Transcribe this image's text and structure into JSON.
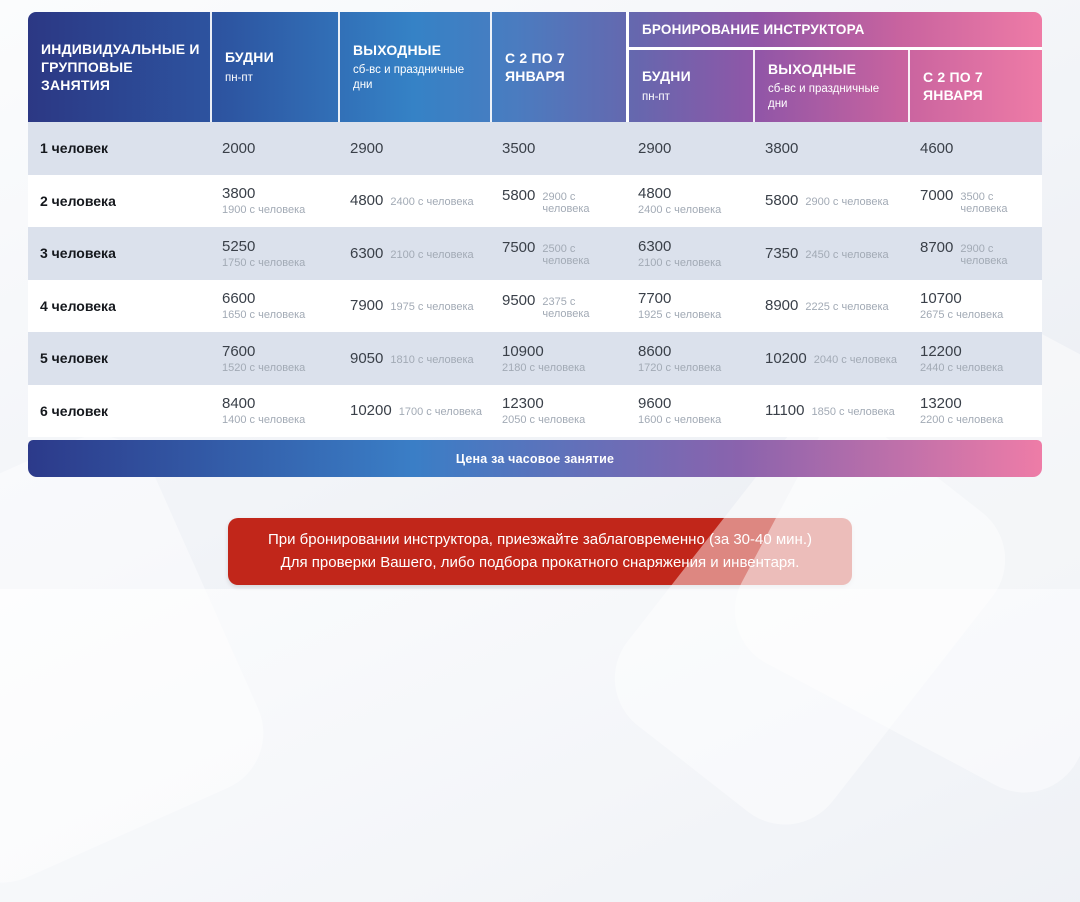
{
  "table": {
    "corner_title": "ИНДИВИДУАЛЬНЫЕ И ГРУППОВЫЕ ЗАНЯТИЯ",
    "booking_header": "БРОНИРОВАНИЕ ИНСТРУКТОРА",
    "columns": [
      {
        "title": "БУДНИ",
        "subtitle": "пн-пт"
      },
      {
        "title": "ВЫХОДНЫЕ",
        "subtitle": "сб-вс и праздничные дни"
      },
      {
        "title": "С 2 ПО 7 ЯНВАРЯ",
        "subtitle": ""
      },
      {
        "title": "БУДНИ",
        "subtitle": "пн-пт"
      },
      {
        "title": "ВЫХОДНЫЕ",
        "subtitle": "сб-вс и праздничные дни"
      },
      {
        "title": "С 2 ПО 7 ЯНВАРЯ",
        "subtitle": ""
      }
    ],
    "rows": [
      {
        "label": "1 человек",
        "cells": [
          {
            "main": "2000"
          },
          {
            "main": "2900"
          },
          {
            "main": "3500"
          },
          {
            "main": "2900"
          },
          {
            "main": "3800"
          },
          {
            "main": "4600"
          }
        ]
      },
      {
        "label": "2 человека",
        "cells": [
          {
            "main": "3800",
            "sub": "1900 с человека",
            "layout": "stacked"
          },
          {
            "main": "4800",
            "sub": "2400 с человека",
            "layout": "inline"
          },
          {
            "main": "5800",
            "sub": "2900 с человека",
            "layout": "inline"
          },
          {
            "main": "4800",
            "sub": "2400 с человека",
            "layout": "stacked"
          },
          {
            "main": "5800",
            "sub": "2900 с человека",
            "layout": "inline"
          },
          {
            "main": "7000",
            "sub": "3500 с человека",
            "layout": "inline"
          }
        ]
      },
      {
        "label": "3 человека",
        "cells": [
          {
            "main": "5250",
            "sub": "1750 с человека",
            "layout": "stacked"
          },
          {
            "main": "6300",
            "sub": "2100 с человека",
            "layout": "inline"
          },
          {
            "main": "7500",
            "sub": "2500 с человека",
            "layout": "inline"
          },
          {
            "main": "6300",
            "sub": "2100 с человека",
            "layout": "stacked"
          },
          {
            "main": "7350",
            "sub": "2450 с человека",
            "layout": "inline"
          },
          {
            "main": "8700",
            "sub": "2900 с человека",
            "layout": "inline"
          }
        ]
      },
      {
        "label": "4 человека",
        "cells": [
          {
            "main": "6600",
            "sub": "1650 с человека",
            "layout": "stacked"
          },
          {
            "main": "7900",
            "sub": "1975 с человека",
            "layout": "inline"
          },
          {
            "main": "9500",
            "sub": "2375 с человека",
            "layout": "inline"
          },
          {
            "main": "7700",
            "sub": "1925 с человека",
            "layout": "stacked"
          },
          {
            "main": "8900",
            "sub": "2225 с человека",
            "layout": "inline"
          },
          {
            "main": "10700",
            "sub": "2675 с человека",
            "layout": "stacked"
          }
        ]
      },
      {
        "label": "5 человек",
        "cells": [
          {
            "main": "7600",
            "sub": "1520 с человека",
            "layout": "stacked"
          },
          {
            "main": "9050",
            "sub": "1810 с человека",
            "layout": "inline"
          },
          {
            "main": "10900",
            "sub": "2180 с человека",
            "layout": "stacked"
          },
          {
            "main": "8600",
            "sub": "1720 с человека",
            "layout": "stacked"
          },
          {
            "main": "10200",
            "sub": "2040 с человека",
            "layout": "inline"
          },
          {
            "main": "12200",
            "sub": "2440 с человека",
            "layout": "stacked"
          }
        ]
      },
      {
        "label": "6 человек",
        "cells": [
          {
            "main": "8400",
            "sub": "1400 с человека",
            "layout": "stacked"
          },
          {
            "main": "10200",
            "sub": "1700 с человека",
            "layout": "inline"
          },
          {
            "main": "12300",
            "sub": "2050 с человека",
            "layout": "stacked"
          },
          {
            "main": "9600",
            "sub": "1600 с человека",
            "layout": "stacked"
          },
          {
            "main": "11100",
            "sub": "1850 с человека",
            "layout": "inline"
          },
          {
            "main": "13200",
            "sub": "2200 с человека",
            "layout": "stacked"
          }
        ]
      }
    ],
    "footer": "Цена за часовое занятие"
  },
  "notice": {
    "line1": "При бронировании инструктора, приезжайте заблаговременно (за 30-40 мин.)",
    "line2": "Для проверки Вашего, либо подбора прокатного снаряжения и инвентаря."
  },
  "colors": {
    "header_navy": "#2c3884",
    "header_blue": "#3582c6",
    "header_purple": "#9156a7",
    "header_pink": "#ee7ba6",
    "row_stripe": "#dbe1ec",
    "notice_red": "#c1261a",
    "sub_value_gray": "#a2aab5"
  }
}
